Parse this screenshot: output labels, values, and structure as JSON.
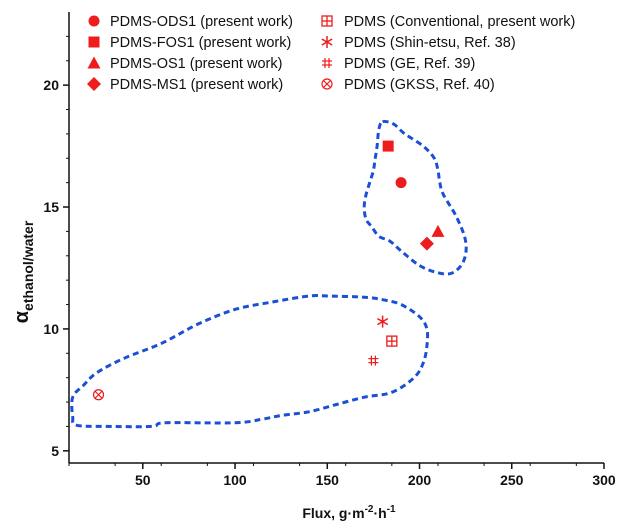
{
  "chart_data": {
    "type": "scatter",
    "xlabel": "Flux, g·m⁻²·h⁻¹",
    "ylabel_main": "α",
    "ylabel_sub": "ethanol/water",
    "xlim": [
      10,
      300
    ],
    "ylim": [
      4.5,
      23
    ],
    "xticks": [
      50,
      100,
      150,
      200,
      250,
      300
    ],
    "yticks": [
      5,
      10,
      15,
      20
    ],
    "grid": false,
    "legend_position": "top",
    "colors": {
      "marker": "#ee1c1c",
      "region": "#1a4fd6",
      "axis": "#111111"
    },
    "series": [
      {
        "name": "PDMS-ODS1 (present work)",
        "marker": "circle",
        "x": [
          190
        ],
        "y": [
          16.0
        ]
      },
      {
        "name": "PDMS-FOS1 (present work)",
        "marker": "square",
        "x": [
          183
        ],
        "y": [
          17.5
        ]
      },
      {
        "name": "PDMS-OS1 (present work)",
        "marker": "triangle",
        "x": [
          210
        ],
        "y": [
          14.0
        ]
      },
      {
        "name": "PDMS-MS1 (present work)",
        "marker": "diamond",
        "x": [
          204
        ],
        "y": [
          13.5
        ]
      },
      {
        "name": "PDMS (Conventional, present work)",
        "marker": "boxplus",
        "x": [
          185
        ],
        "y": [
          9.5
        ]
      },
      {
        "name": "PDMS (Shin-etsu, Ref. 38)",
        "marker": "asterisk",
        "x": [
          180
        ],
        "y": [
          10.3
        ]
      },
      {
        "name": "PDMS (GE, Ref. 39)",
        "marker": "hash",
        "x": [
          175
        ],
        "y": [
          8.7
        ]
      },
      {
        "name": "PDMS (GKSS, Ref. 40)",
        "marker": "circlex",
        "x": [
          26
        ],
        "y": [
          7.3
        ]
      }
    ],
    "regions": [
      {
        "id": "upper",
        "points": [
          [
            180,
            18.5
          ],
          [
            186,
            18.4
          ],
          [
            192,
            18.0
          ],
          [
            202,
            17.5
          ],
          [
            208,
            17.0
          ],
          [
            210,
            16.5
          ],
          [
            211,
            16.0
          ],
          [
            213,
            15.5
          ],
          [
            220,
            14.6
          ],
          [
            225,
            13.6
          ],
          [
            224,
            12.8
          ],
          [
            218,
            12.3
          ],
          [
            210,
            12.3
          ],
          [
            200,
            12.6
          ],
          [
            190,
            13.2
          ],
          [
            184,
            13.6
          ],
          [
            178,
            13.8
          ],
          [
            174,
            14.2
          ],
          [
            171,
            14.5
          ],
          [
            170,
            15.0
          ],
          [
            171,
            15.5
          ],
          [
            173,
            16.0
          ],
          [
            175,
            16.5
          ],
          [
            176,
            17.0
          ],
          [
            177,
            17.5
          ],
          [
            178,
            18.2
          ],
          [
            180,
            18.5
          ]
        ]
      },
      {
        "id": "lower",
        "points": [
          [
            12,
            6.4
          ],
          [
            14,
            6.05
          ],
          [
            30,
            6.0
          ],
          [
            55,
            6.0
          ],
          [
            62,
            6.15
          ],
          [
            100,
            6.15
          ],
          [
            115,
            6.3
          ],
          [
            125,
            6.45
          ],
          [
            140,
            6.6
          ],
          [
            155,
            6.9
          ],
          [
            170,
            7.2
          ],
          [
            185,
            7.4
          ],
          [
            197,
            8.0
          ],
          [
            202,
            8.6
          ],
          [
            204,
            9.3
          ],
          [
            204,
            10.0
          ],
          [
            200,
            10.5
          ],
          [
            190,
            11.0
          ],
          [
            180,
            11.2
          ],
          [
            170,
            11.3
          ],
          [
            150,
            11.35
          ],
          [
            140,
            11.35
          ],
          [
            120,
            11.1
          ],
          [
            100,
            10.8
          ],
          [
            80,
            10.2
          ],
          [
            60,
            9.4
          ],
          [
            40,
            8.8
          ],
          [
            25,
            8.2
          ],
          [
            18,
            7.7
          ],
          [
            12,
            7.2
          ],
          [
            12,
            6.4
          ]
        ]
      }
    ]
  }
}
